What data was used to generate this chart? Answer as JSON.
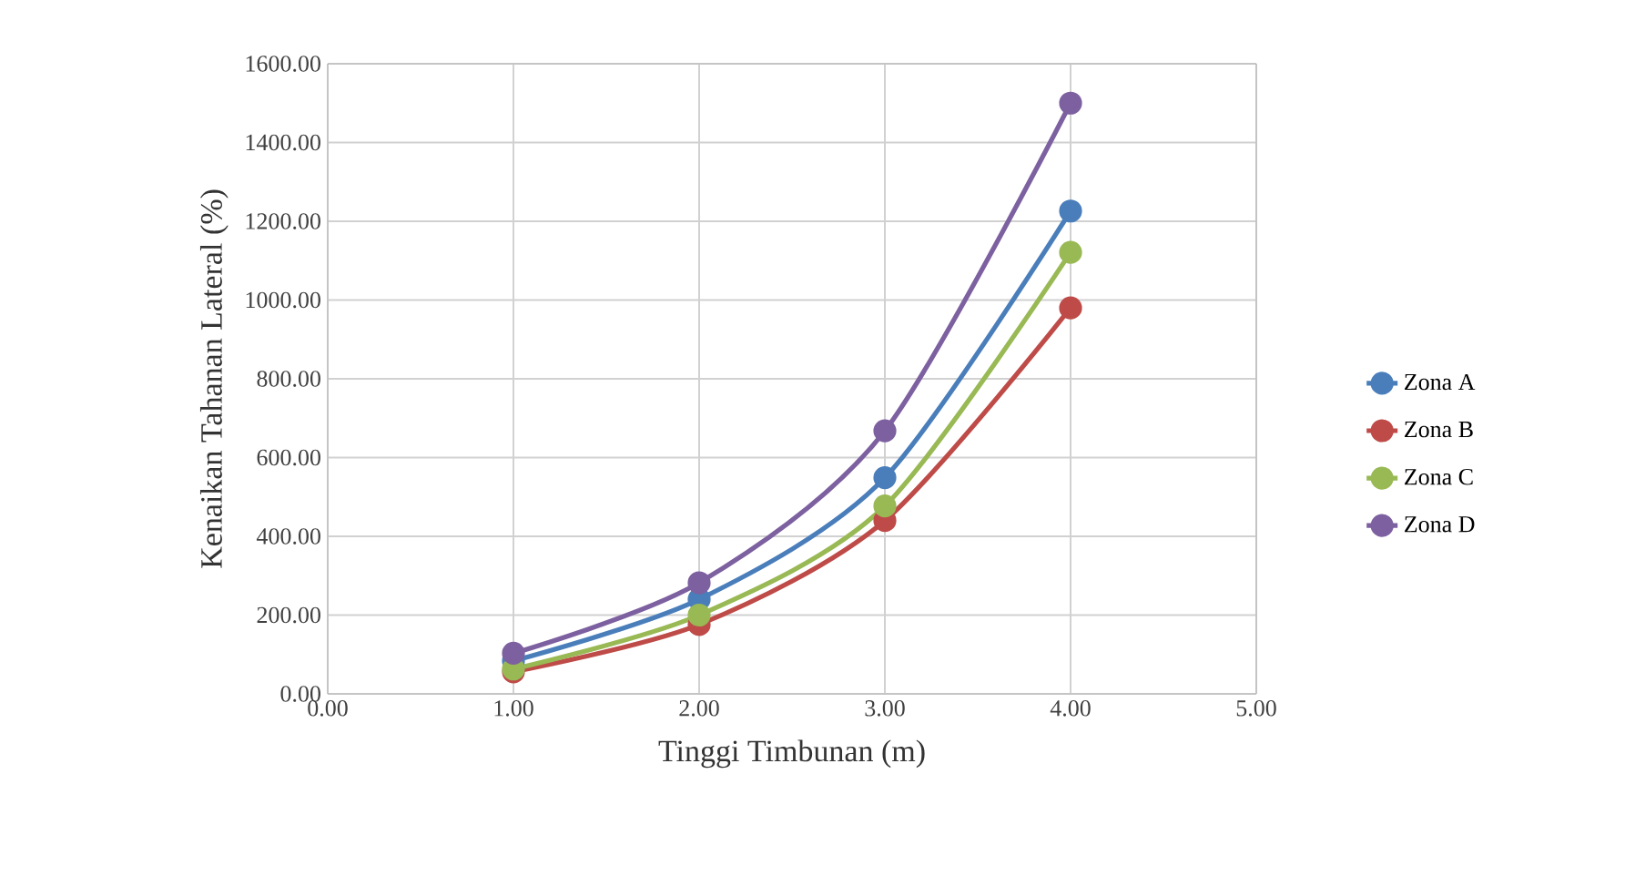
{
  "chart_data": {
    "type": "line",
    "xlabel": "Tinggi Timbunan (m)",
    "ylabel": "Kenaikan Tahanan Lateral (%)",
    "x": [
      1,
      2,
      3,
      4
    ],
    "series": [
      {
        "name": "Zona A",
        "color": "#4a7ebb",
        "values": [
          84,
          240,
          549,
          1226
        ]
      },
      {
        "name": "Zona B",
        "color": "#be4b48",
        "values": [
          56,
          176,
          440,
          980
        ]
      },
      {
        "name": "Zona C",
        "color": "#98b954",
        "values": [
          63,
          200,
          477,
          1121
        ]
      },
      {
        "name": "Zona D",
        "color": "#7d60a0",
        "values": [
          103,
          282,
          668,
          1500
        ]
      }
    ],
    "xlim": [
      0,
      5
    ],
    "xticks": [
      {
        "value": 0,
        "label": "0.00"
      },
      {
        "value": 1,
        "label": "1.00"
      },
      {
        "value": 2,
        "label": "2.00"
      },
      {
        "value": 3,
        "label": "3.00"
      },
      {
        "value": 4,
        "label": "4.00"
      },
      {
        "value": 5,
        "label": "5.00"
      }
    ],
    "ylim": [
      0,
      1600
    ],
    "yticks": [
      {
        "value": 0,
        "label": "0.00"
      },
      {
        "value": 200,
        "label": "200.00"
      },
      {
        "value": 400,
        "label": "400.00"
      },
      {
        "value": 600,
        "label": "600.00"
      },
      {
        "value": 800,
        "label": "800.00"
      },
      {
        "value": 1000,
        "label": "1000.00"
      },
      {
        "value": 1200,
        "label": "1200.00"
      },
      {
        "value": 1400,
        "label": "1400.00"
      },
      {
        "value": 1600,
        "label": "1600.00"
      }
    ],
    "grid": true,
    "legend": "right",
    "marker": "circle",
    "line_style": "solid"
  }
}
